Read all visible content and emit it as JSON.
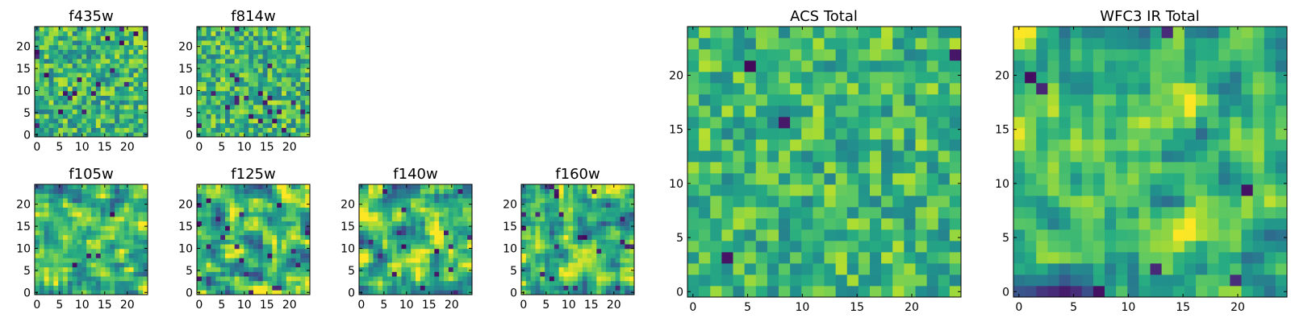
{
  "chart_data": [
    {
      "type": "heatmap",
      "title": "f435w",
      "colormap": "viridis",
      "grid_size": [
        24,
        24
      ],
      "xlim": [
        0,
        24
      ],
      "ylim": [
        0,
        24
      ],
      "xticks": [
        0,
        5,
        10,
        15,
        20
      ],
      "yticks": [
        0,
        5,
        10,
        15,
        20
      ],
      "seed": 11,
      "smooth": 0,
      "gain": 1.0,
      "pdark": 0.045
    },
    {
      "type": "heatmap",
      "title": "f814w",
      "colormap": "viridis",
      "grid_size": [
        24,
        24
      ],
      "xlim": [
        0,
        24
      ],
      "ylim": [
        0,
        24
      ],
      "xticks": [
        0,
        5,
        10,
        15,
        20
      ],
      "yticks": [
        0,
        5,
        10,
        15,
        20
      ],
      "seed": 23,
      "smooth": 0,
      "gain": 1.0,
      "pdark": 0.03
    },
    {
      "type": "heatmap",
      "title": "f105w",
      "colormap": "viridis",
      "grid_size": [
        24,
        24
      ],
      "xlim": [
        0,
        24
      ],
      "ylim": [
        0,
        24
      ],
      "xticks": [
        0,
        5,
        10,
        15,
        20
      ],
      "yticks": [
        0,
        5,
        10,
        15,
        20
      ],
      "seed": 37,
      "smooth": 1,
      "gain": 1.0,
      "pdark": 0.01
    },
    {
      "type": "heatmap",
      "title": "f125w",
      "colormap": "viridis",
      "grid_size": [
        24,
        24
      ],
      "xlim": [
        0,
        24
      ],
      "ylim": [
        0,
        24
      ],
      "xticks": [
        0,
        5,
        10,
        15,
        20
      ],
      "yticks": [
        0,
        5,
        10,
        15,
        20
      ],
      "seed": 41,
      "smooth": 1,
      "gain": 1.25,
      "pdark": 0.04
    },
    {
      "type": "heatmap",
      "title": "f140w",
      "colormap": "viridis",
      "grid_size": [
        24,
        24
      ],
      "xlim": [
        0,
        24
      ],
      "ylim": [
        0,
        24
      ],
      "xticks": [
        0,
        5,
        10,
        15,
        20
      ],
      "yticks": [
        0,
        5,
        10,
        15,
        20
      ],
      "seed": 53,
      "smooth": 1,
      "gain": 1.25,
      "pdark": 0.04
    },
    {
      "type": "heatmap",
      "title": "f160w",
      "colormap": "viridis",
      "grid_size": [
        24,
        24
      ],
      "xlim": [
        0,
        24
      ],
      "ylim": [
        0,
        24
      ],
      "xticks": [
        0,
        5,
        10,
        15,
        20
      ],
      "yticks": [
        0,
        5,
        10,
        15,
        20
      ],
      "seed": 67,
      "smooth": 1,
      "gain": 1.1,
      "pdark": 0.025
    },
    {
      "type": "heatmap",
      "title": "ACS Total",
      "colormap": "viridis",
      "grid_size": [
        24,
        24
      ],
      "xlim": [
        0,
        24
      ],
      "ylim": [
        0,
        24
      ],
      "xticks": [
        0,
        5,
        10,
        15,
        20
      ],
      "yticks": [
        0,
        5,
        10,
        15,
        20
      ],
      "seed": 79,
      "smooth": 0,
      "gain": 0.85,
      "pdark": 0.018
    },
    {
      "type": "heatmap",
      "title": "WFC3 IR Total",
      "colormap": "viridis",
      "grid_size": [
        24,
        24
      ],
      "xlim": [
        0,
        24
      ],
      "ylim": [
        0,
        24
      ],
      "xticks": [
        0,
        5,
        10,
        15,
        20
      ],
      "yticks": [
        0,
        5,
        10,
        15,
        20
      ],
      "seed": 97,
      "smooth": 1,
      "gain": 0.95,
      "pdark": 0.02
    }
  ]
}
